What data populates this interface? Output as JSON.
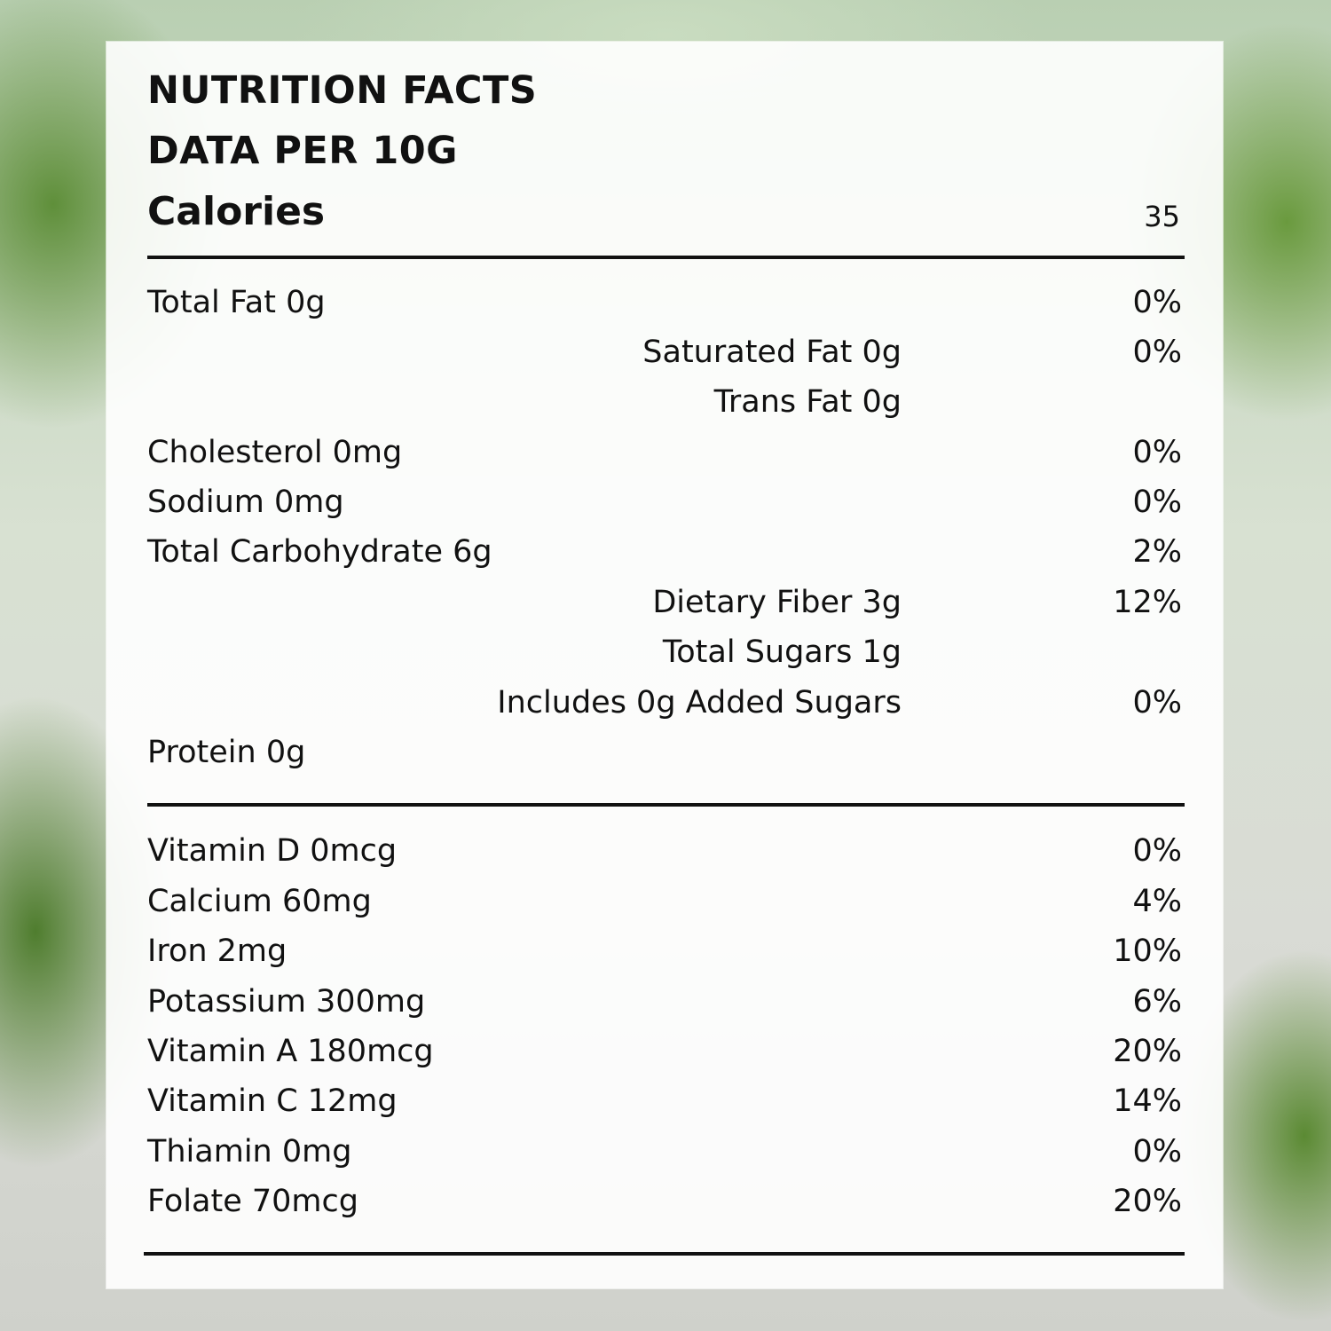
{
  "title_line1": "NUTRITION FACTS",
  "title_line2": "DATA PER 10G",
  "calories": {
    "label": "Calories",
    "value": "35"
  },
  "nutrients": [
    {
      "name": "Total Fat 0g",
      "pct": "0%"
    },
    {
      "name": "Saturated Fat 0g",
      "pct": "0%"
    },
    {
      "name": "Trans Fat 0g",
      "pct": ""
    },
    {
      "name": "Cholesterol 0mg",
      "pct": "0%"
    },
    {
      "name": "Sodium 0mg",
      "pct": "0%"
    },
    {
      "name": "Total Carbohydrate 6g",
      "pct": "2%"
    },
    {
      "name": "Dietary Fiber 3g",
      "pct": "12%"
    },
    {
      "name": "Total Sugars 1g",
      "pct": ""
    },
    {
      "name": "Includes 0g Added Sugars",
      "pct": "0%"
    },
    {
      "name": "Protein 0g",
      "pct": ""
    }
  ],
  "vitamins": [
    {
      "name": "Vitamin D 0mcg",
      "pct": "0%"
    },
    {
      "name": "Calcium 60mg",
      "pct": "4%"
    },
    {
      "name": "Iron 2mg",
      "pct": "10%"
    },
    {
      "name": "Potassium 300mg",
      "pct": "6%"
    },
    {
      "name": "Vitamin A 180mcg",
      "pct": "20%"
    },
    {
      "name": "Vitamin C 12mg",
      "pct": "14%"
    },
    {
      "name": "Thiamin 0mg",
      "pct": "0%"
    },
    {
      "name": "Folate 70mcg",
      "pct": "20%"
    }
  ]
}
